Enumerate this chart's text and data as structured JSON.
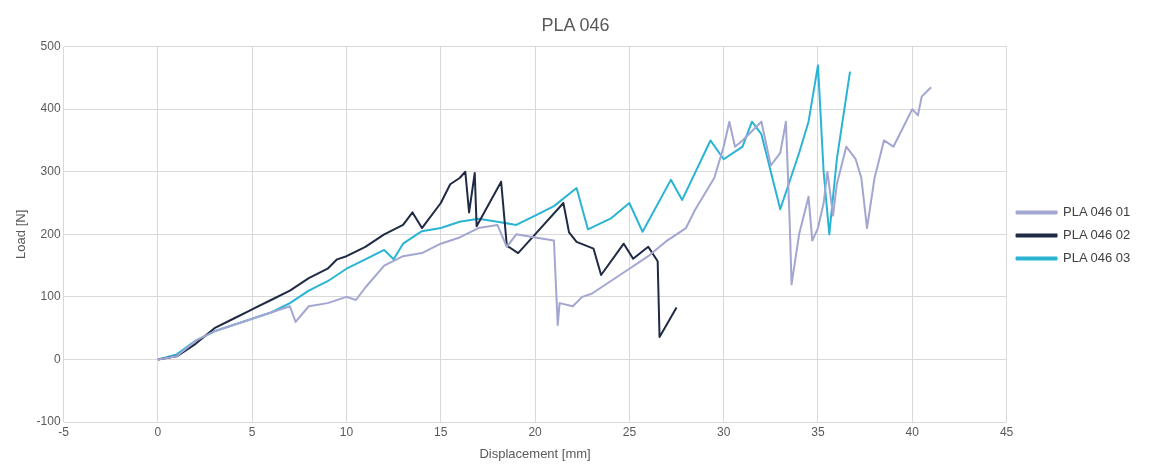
{
  "chart_data": {
    "type": "line",
    "title": "PLA 046",
    "xlabel": "Displacement [mm]",
    "ylabel": "Load [N]",
    "xlim": [
      -5,
      45
    ],
    "xticks": [
      -5,
      0,
      5,
      10,
      15,
      20,
      25,
      30,
      35,
      40,
      45
    ],
    "ylim": [
      -100,
      500
    ],
    "yticks": [
      -100,
      0,
      100,
      200,
      300,
      400,
      500
    ],
    "grid": true,
    "legend": "right",
    "marker": "none",
    "line_style": "solid",
    "series": [
      {
        "name": "PLA 046 01",
        "color": "#a3a6d0",
        "x": [
          0,
          1,
          2,
          3,
          4,
          5,
          6,
          7,
          7.3,
          8,
          9,
          10,
          10.5,
          11,
          12,
          13,
          14,
          15,
          16,
          17,
          18,
          18.5,
          19,
          20,
          21,
          21.2,
          21.3,
          22,
          22.5,
          23,
          24,
          25,
          26,
          27,
          28,
          28.5,
          29.5,
          30,
          30.3,
          30.6,
          31,
          32,
          32.5,
          33,
          33.3,
          33.5,
          33.6,
          34,
          34.5,
          34.7,
          35,
          35.3,
          35.5,
          35.8,
          36,
          36.5,
          37,
          37.3,
          37.6,
          38,
          38.5,
          39,
          39.5,
          40,
          40.3,
          40.5,
          41
        ],
        "values": [
          0,
          5,
          30,
          45,
          55,
          65,
          75,
          85,
          60,
          85,
          90,
          100,
          95,
          115,
          150,
          165,
          170,
          185,
          195,
          210,
          215,
          180,
          200,
          195,
          190,
          55,
          90,
          85,
          100,
          105,
          125,
          145,
          165,
          190,
          210,
          240,
          290,
          340,
          380,
          340,
          350,
          380,
          310,
          330,
          380,
          220,
          120,
          200,
          260,
          190,
          210,
          250,
          300,
          230,
          280,
          340,
          320,
          290,
          210,
          290,
          350,
          340,
          370,
          400,
          390,
          420,
          435
        ]
      },
      {
        "name": "PLA 046 02",
        "color": "#1f2a44",
        "x": [
          0,
          1,
          2,
          3,
          4,
          5,
          6,
          7,
          8,
          9,
          9.5,
          10,
          11,
          12,
          13,
          13.5,
          14,
          15,
          15.5,
          16,
          16.3,
          16.5,
          16.8,
          16.9,
          18.2,
          18.5,
          19.1,
          20,
          21.5,
          21.8,
          22.2,
          23.1,
          23.5,
          24.7,
          25.2,
          26,
          26.5,
          26.6,
          27.5
        ],
        "values": [
          0,
          5,
          25,
          50,
          65,
          80,
          95,
          110,
          130,
          145,
          160,
          165,
          180,
          200,
          215,
          235,
          210,
          250,
          280,
          290,
          300,
          235,
          298,
          213,
          284,
          182,
          170,
          200,
          250,
          203,
          188,
          177,
          135,
          185,
          161,
          180,
          157,
          36,
          83
        ]
      },
      {
        "name": "PLA 046 03",
        "color": "#2ab4d4",
        "x": [
          0,
          1,
          2,
          3,
          4,
          5,
          6,
          7,
          8,
          9,
          10,
          11,
          12,
          12.5,
          13,
          14,
          15,
          16,
          17,
          18,
          19,
          20,
          21,
          22.2,
          22.8,
          24,
          25,
          25.7,
          27.2,
          27.8,
          29.3,
          30,
          31,
          31.5,
          32,
          33,
          34,
          34.5,
          35,
          35.3,
          35.6,
          36,
          36.7
        ],
        "values": [
          0,
          8,
          30,
          45,
          55,
          65,
          75,
          90,
          110,
          125,
          145,
          160,
          175,
          160,
          185,
          205,
          210,
          220,
          225,
          220,
          215,
          230,
          245,
          274,
          208,
          225,
          250,
          204,
          287,
          255,
          350,
          320,
          340,
          380,
          360,
          240,
          330,
          380,
          470,
          300,
          200,
          320,
          460
        ]
      }
    ]
  }
}
